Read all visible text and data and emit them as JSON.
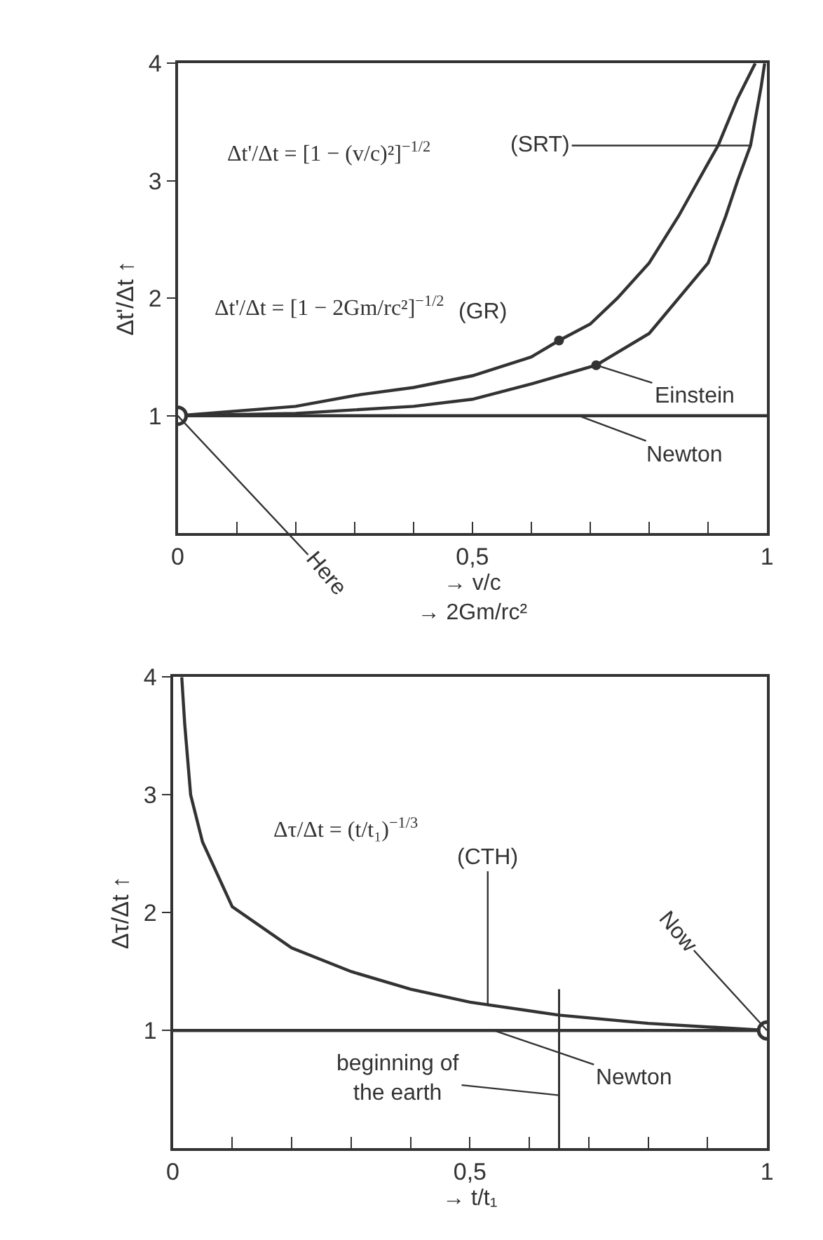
{
  "chart_data": [
    {
      "type": "line",
      "xlabel": "→ v/c\n→ 2Gm/rc²",
      "ylabel": "Δt'/Δt ↑",
      "xlim": [
        0,
        1
      ],
      "ylim": [
        0,
        4
      ],
      "xticks": [
        0,
        {
          "value": 0.1,
          "label": null
        },
        {
          "value": 0.2,
          "label": null
        },
        {
          "value": 0.3,
          "label": null
        },
        {
          "value": 0.4,
          "label": null
        },
        {
          "value": 0.5,
          "label": "0,5"
        },
        {
          "value": 0.6,
          "label": null
        },
        {
          "value": 0.7,
          "label": null
        },
        {
          "value": 0.8,
          "label": null
        },
        {
          "value": 0.9,
          "label": null
        },
        1
      ],
      "yticks": [
        1,
        2,
        3,
        4
      ],
      "line_style": "solid",
      "marker": "none",
      "series": [
        {
          "color": "#333333",
          "x": [
            0,
            0.2,
            0.31,
            0.4,
            0.5,
            0.6,
            0.647,
            0.7,
            0.746,
            0.8,
            0.85,
            0.9,
            0.917,
            0.95,
            0.98
          ],
          "values": [
            1,
            1.08,
            1.18,
            1.24,
            1.34,
            1.5,
            1.64,
            1.78,
            2.0,
            2.3,
            2.7,
            3.15,
            3.3,
            3.7,
            4
          ]
        },
        {
          "color": "#333333",
          "x": [
            0,
            0.2,
            0.4,
            0.5,
            0.6,
            0.71,
            0.8,
            0.9,
            0.93,
            0.95,
            0.972,
            0.99,
            0.996
          ],
          "values": [
            1,
            1.02,
            1.08,
            1.14,
            1.27,
            1.43,
            1.7,
            2.3,
            2.7,
            3.0,
            3.3,
            3.8,
            4
          ]
        },
        {
          "color": "#333333",
          "x": [
            0,
            1
          ],
          "values": [
            1,
            1
          ]
        },
        {
          "type": "scatter",
          "marker": "circle",
          "color": "#333333",
          "x": [
            0.647,
            0.71
          ],
          "values": [
            1.64,
            1.43
          ]
        },
        {
          "type": "scatter",
          "marker": "circle",
          "color": "#ffffff",
          "x": [
            0
          ],
          "values": [
            1
          ]
        }
      ],
      "annotations": [
        "Δt'/Δt = [1 − (v/c)²]$^{−1/2}$",
        "Δt'/Δt = [1 − 2Gm/rc²]$^{−1/2}$",
        {
          "text": "(SRT)",
          "x": 0.972,
          "y": 3.3
        },
        "(GR)",
        {
          "text": "Einstein",
          "x": 0.71,
          "y": 1.43
        },
        {
          "text": "Newton",
          "x": 0.68,
          "y": 1.0
        },
        {
          "text": "Here",
          "x": 0,
          "y": 1
        }
      ]
    },
    {
      "type": "line",
      "xlabel": "→ t/t₁",
      "ylabel": "Δτ/Δt ↑",
      "xlim": [
        0,
        1
      ],
      "ylim": [
        0,
        4
      ],
      "xticks": [
        0,
        {
          "value": 0.1,
          "label": null
        },
        {
          "value": 0.2,
          "label": null
        },
        {
          "value": 0.3,
          "label": null
        },
        {
          "value": 0.4,
          "label": null
        },
        {
          "value": 0.5,
          "label": "0,5"
        },
        {
          "value": 0.6,
          "label": null
        },
        {
          "value": 0.7,
          "label": null
        },
        {
          "value": 0.8,
          "label": null
        },
        {
          "value": 0.9,
          "label": null
        },
        1
      ],
      "yticks": [
        1,
        2,
        3,
        4
      ],
      "line_style": "solid",
      "marker": "none",
      "series": [
        {
          "color": "#333333",
          "x": [
            0.015,
            0.02,
            0.03,
            0.05,
            0.1,
            0.2,
            0.3,
            0.4,
            0.5,
            0.65,
            0.8,
            1.0
          ],
          "values": [
            4,
            3.6,
            3.0,
            2.6,
            2.05,
            1.7,
            1.5,
            1.35,
            1.24,
            1.13,
            1.06,
            1.0
          ]
        },
        {
          "color": "#333333",
          "x": [
            0,
            1
          ],
          "values": [
            1,
            1
          ]
        },
        {
          "type": "scatter",
          "marker": "circle",
          "color": "#ffffff",
          "x": [
            1
          ],
          "values": [
            1
          ]
        }
      ],
      "ref_lines": [
        {
          "axis": "x",
          "value": 0.65
        }
      ],
      "annotations": [
        "Δτ/Δt = (t/t₁)$^{−1/3}$",
        {
          "text": "(CTH)",
          "x": 0.53,
          "y": 1.22
        },
        {
          "text": "Newton",
          "x": 0.54,
          "y": 1.0
        },
        {
          "text": "beginning of\nthe earth",
          "x": 0.65,
          "y": 0.45
        },
        {
          "text": "Now",
          "x": 1,
          "y": 1
        }
      ]
    }
  ]
}
